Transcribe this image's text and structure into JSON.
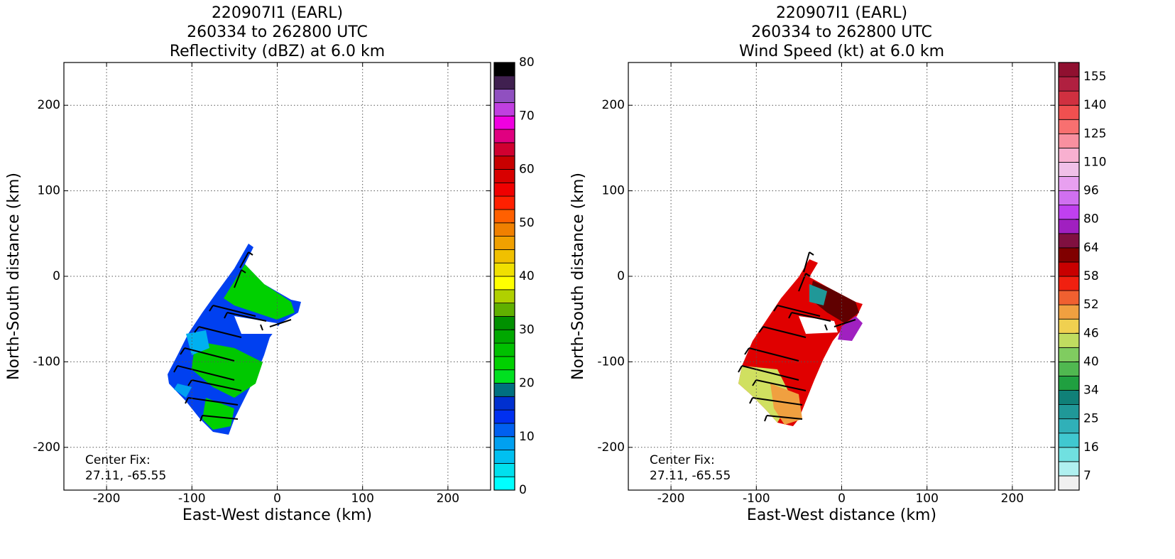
{
  "chart_data": [
    {
      "type": "field",
      "title": [
        "220907I1 (EARL)",
        "260334 to 262800 UTC",
        "Reflectivity (dBZ) at 6.0 km"
      ],
      "x_label": "East-West distance (km)",
      "y_label": "North-South distance (km)",
      "xlim": [
        -250,
        250
      ],
      "ylim": [
        -250,
        250
      ],
      "xticks": [
        -200,
        -100,
        0,
        100,
        200
      ],
      "yticks": [
        -200,
        -100,
        0,
        100,
        200
      ],
      "grid": true,
      "annotation": [
        "Center Fix:",
        "27.11, -65.55"
      ],
      "colorbar": {
        "clim": [
          0,
          80
        ],
        "ticks": [
          0,
          10,
          20,
          30,
          40,
          50,
          60,
          70,
          80
        ],
        "colors": [
          "#00ffff",
          "#00e0ee",
          "#00c0f0",
          "#00a0f0",
          "#0060f0",
          "#0030f0",
          "#0030d0",
          "#007080",
          "#00e020",
          "#00d000",
          "#00c000",
          "#00a800",
          "#009000",
          "#60b000",
          "#b0d000",
          "#ffff00",
          "#f0e000",
          "#f0c000",
          "#f0a000",
          "#f08000",
          "#ff6000",
          "#ff2000",
          "#f00000",
          "#d80000",
          "#c80000",
          "#d00030",
          "#e00080",
          "#f000e0",
          "#c040e0",
          "#9050c0",
          "#402050",
          "#000000"
        ]
      }
    },
    {
      "type": "field",
      "title": [
        "220907I1 (EARL)",
        "260334 to 262800 UTC",
        "Wind Speed (kt) at 6.0 km"
      ],
      "x_label": "East-West distance (km)",
      "y_label": "North-South distance (km)",
      "xlim": [
        -250,
        250
      ],
      "ylim": [
        -250,
        250
      ],
      "xticks": [
        -200,
        -100,
        0,
        100,
        200
      ],
      "yticks": [
        -200,
        -100,
        0,
        100,
        200
      ],
      "grid": true,
      "annotation": [
        "Center Fix:",
        "27.11, -65.55"
      ],
      "colorbar": {
        "levels": [
          0,
          7,
          11.5,
          16,
          20.5,
          25,
          29.5,
          34,
          37,
          40,
          43,
          46,
          49,
          52,
          55,
          58,
          61,
          64,
          72,
          80,
          88,
          96,
          103,
          110,
          117.5,
          125,
          132.5,
          140,
          147.5,
          155,
          160
        ],
        "ticks": [
          7,
          16,
          25,
          34,
          40,
          46,
          52,
          58,
          64,
          80,
          96,
          110,
          125,
          140,
          155
        ],
        "colors": [
          "#f0f0f0",
          "#b0f0f0",
          "#70e0e0",
          "#40c8d0",
          "#30b0b8",
          "#209898",
          "#108078",
          "#20a040",
          "#50b850",
          "#80cc60",
          "#c0dc60",
          "#f0d050",
          "#f0a040",
          "#f06030",
          "#f02010",
          "#c80000",
          "#800000",
          "#801040",
          "#a020c0",
          "#c040f0",
          "#d070f0",
          "#e8a0f0",
          "#f0c0e8",
          "#f8b0d0",
          "#f890a0",
          "#f87070",
          "#f05050",
          "#d03040",
          "#b02040",
          "#901030"
        ]
      }
    }
  ]
}
